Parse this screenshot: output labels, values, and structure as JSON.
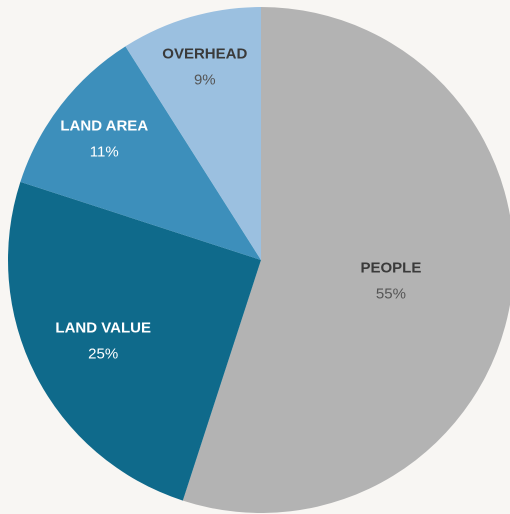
{
  "chart_data": {
    "type": "pie",
    "categories": [
      "PEOPLE",
      "LAND VALUE",
      "LAND AREA",
      "OVERHEAD"
    ],
    "values": [
      55,
      25,
      11,
      9
    ],
    "value_labels": [
      "55%",
      "25%",
      "11%",
      "9%"
    ],
    "colors": [
      "#b3b3b3",
      "#0f6a8b",
      "#3d8fbb",
      "#9bc0e0"
    ]
  }
}
